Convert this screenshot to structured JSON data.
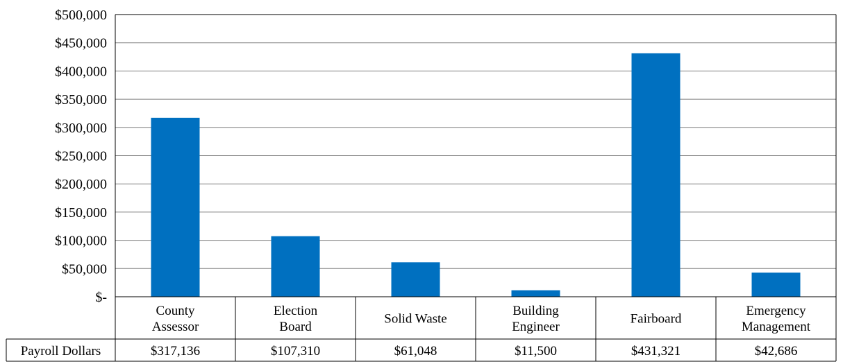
{
  "chart_data": {
    "type": "bar",
    "categories": [
      [
        "County",
        "Assessor"
      ],
      [
        "Election",
        "Board"
      ],
      [
        "Solid Waste"
      ],
      [
        "Building",
        "Engineer"
      ],
      [
        "Fairboard"
      ],
      [
        "Emergency",
        "Management"
      ]
    ],
    "series": [
      {
        "name": "Payroll Dollars",
        "values": [
          317136,
          107310,
          61048,
          11500,
          431321,
          42686
        ]
      }
    ],
    "table_values": [
      "$317,136",
      "$107,310",
      "$61,048",
      "$11,500",
      "$431,321",
      "$42,686"
    ],
    "y_tick_labels": [
      "$-",
      "$50,000",
      "$100,000",
      "$150,000",
      "$200,000",
      "$250,000",
      "$300,000",
      "$350,000",
      "$400,000",
      "$450,000",
      "$500,000"
    ],
    "ylim": [
      0,
      500000
    ],
    "y_step": 50000,
    "grid": true,
    "legend": "data table",
    "bar_color": "#0070C0",
    "grid_color": "#808080",
    "border_color": "#000000"
  }
}
